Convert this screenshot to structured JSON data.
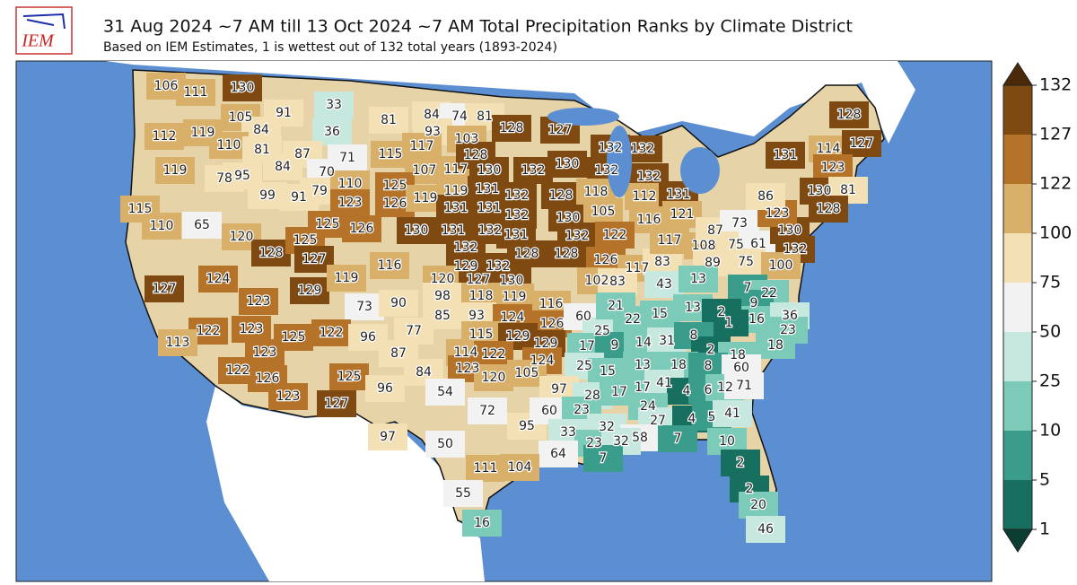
{
  "logo": "IEM",
  "title": "31 Aug 2024 ~7 AM till 13 Oct 2024 ~7 AM Total Precipitation Ranks by Climate District",
  "subtitle": "Based on IEM Estimates, 1 is wettest out of 132 total years (1893-2024)",
  "colorbar": {
    "ticks": [
      132,
      127,
      122,
      100,
      75,
      50,
      25,
      10,
      5,
      1
    ],
    "colors": [
      "#7f4a12",
      "#b5732a",
      "#d9b06a",
      "#f3e1b5",
      "#f2f2f2",
      "#c6e8df",
      "#7ccbb8",
      "#3a9c8a",
      "#17705f"
    ],
    "extend_colors": [
      "#4a2a08",
      "#0b3d33"
    ]
  },
  "districts": [
    106,
    111,
    130,
    105,
    84,
    112,
    119,
    110,
    81,
    91,
    33,
    36,
    81,
    84,
    74,
    81,
    93,
    103,
    128,
    127,
    119,
    78,
    95,
    84,
    87,
    71,
    70,
    115,
    117,
    107,
    117,
    130,
    128,
    132,
    130,
    132,
    132,
    132,
    99,
    91,
    79,
    110,
    123,
    125,
    126,
    119,
    119,
    131,
    131,
    131,
    132,
    128,
    118,
    132,
    112,
    131,
    115,
    110,
    65,
    120,
    125,
    126,
    130,
    131,
    132,
    131,
    132,
    130,
    105,
    116,
    121,
    132,
    122,
    128,
    125,
    127,
    132,
    129,
    132,
    128,
    128,
    126,
    117,
    83,
    117,
    108,
    87,
    73,
    89,
    75,
    61,
    75,
    132,
    100,
    130,
    123,
    86,
    131,
    114,
    127,
    128,
    123,
    130,
    81,
    128,
    124,
    127,
    123,
    129,
    119,
    116,
    120,
    127,
    130,
    116,
    102,
    83,
    43,
    13,
    7,
    22,
    9,
    16,
    36,
    23,
    18,
    73,
    90,
    98,
    118,
    119,
    85,
    93,
    124,
    126,
    60,
    25,
    21,
    22,
    15,
    13,
    2,
    1,
    122,
    113,
    123,
    125,
    122,
    96,
    77,
    115,
    129,
    129,
    17,
    9,
    14,
    31,
    8,
    2,
    18,
    123,
    87,
    114,
    122,
    124,
    25,
    15,
    13,
    18,
    8,
    60,
    122,
    126,
    125,
    84,
    123,
    120,
    105,
    97,
    28,
    17,
    17,
    41,
    4,
    6,
    12,
    71,
    96,
    54,
    123,
    127,
    72,
    95,
    60,
    23,
    24,
    27,
    4,
    5,
    41,
    32,
    58,
    7,
    10,
    97,
    50,
    33,
    23,
    32,
    64,
    7,
    2,
    111,
    104,
    2,
    55,
    20,
    16,
    46
  ]
}
